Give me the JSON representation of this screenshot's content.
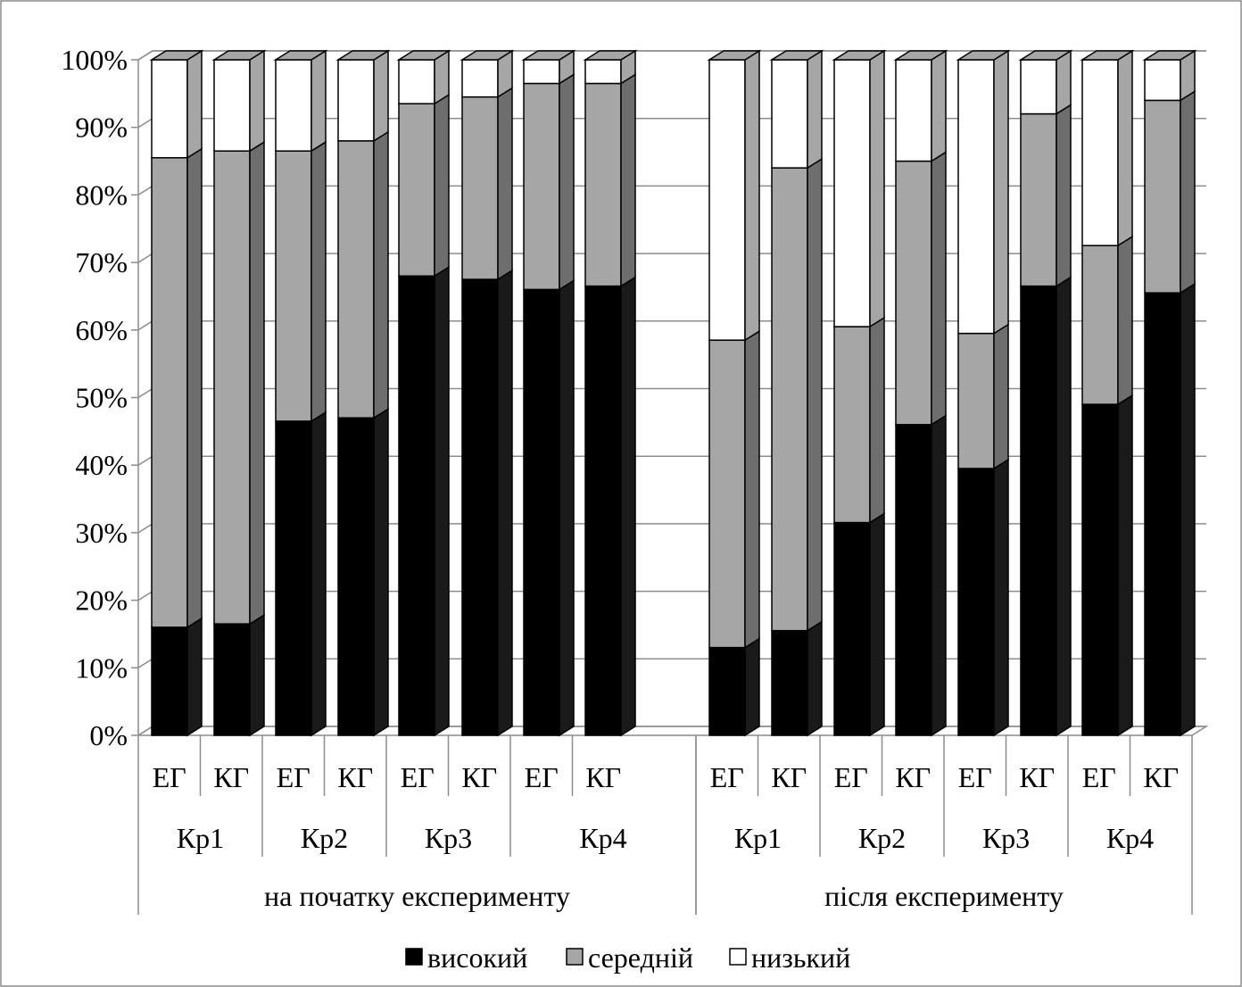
{
  "chart_data": {
    "type": "bar",
    "stacked": true,
    "percent": true,
    "three_d": true,
    "ylim": [
      0,
      100
    ],
    "yticks": [
      "0%",
      "10%",
      "20%",
      "30%",
      "40%",
      "50%",
      "60%",
      "70%",
      "80%",
      "90%",
      "100%"
    ],
    "groups": [
      {
        "label": "на початку експерименту",
        "criteria": [
          {
            "label": "Кр1",
            "bars": [
              "ЕГ",
              "КГ"
            ]
          },
          {
            "label": "Кр2",
            "bars": [
              "ЕГ",
              "КГ"
            ]
          },
          {
            "label": "Кр3",
            "bars": [
              "ЕГ",
              "КГ"
            ]
          },
          {
            "label": "Кр4",
            "bars": [
              "ЕГ",
              "КГ"
            ]
          }
        ]
      },
      {
        "label": "після експерименту",
        "criteria": [
          {
            "label": "Кр1",
            "bars": [
              "ЕГ",
              "КГ"
            ]
          },
          {
            "label": "Кр2",
            "bars": [
              "ЕГ",
              "КГ"
            ]
          },
          {
            "label": "Кр3",
            "bars": [
              "ЕГ",
              "КГ"
            ]
          },
          {
            "label": "Кр4",
            "bars": [
              "ЕГ",
              "КГ"
            ]
          }
        ]
      }
    ],
    "series": [
      {
        "name": "високий",
        "color": "#000000",
        "side": "#1a1a1a",
        "top": "#333333",
        "values": [
          16,
          16.5,
          46.5,
          47,
          68,
          67.5,
          66,
          66.5,
          13,
          15.5,
          31.5,
          46,
          39.5,
          66.5,
          49,
          65.5
        ]
      },
      {
        "name": "середній",
        "color": "#a6a6a6",
        "side": "#6e6e6e",
        "top": "#b8b8b8",
        "values": [
          69.5,
          70,
          40,
          41,
          25.5,
          27,
          30.5,
          30,
          45.5,
          68.5,
          29,
          39,
          20,
          25.5,
          23.5,
          28.5
        ]
      },
      {
        "name": "низький",
        "color": "#ffffff",
        "side": "#a6a6a6",
        "top": "#a6a6a6",
        "values": [
          14.5,
          13.5,
          13.5,
          12,
          6.5,
          5.5,
          3.5,
          3.5,
          41.5,
          16,
          39.5,
          15,
          40.5,
          8,
          27.5,
          6
        ]
      }
    ],
    "legend_position": "bottom",
    "grid": true
  }
}
